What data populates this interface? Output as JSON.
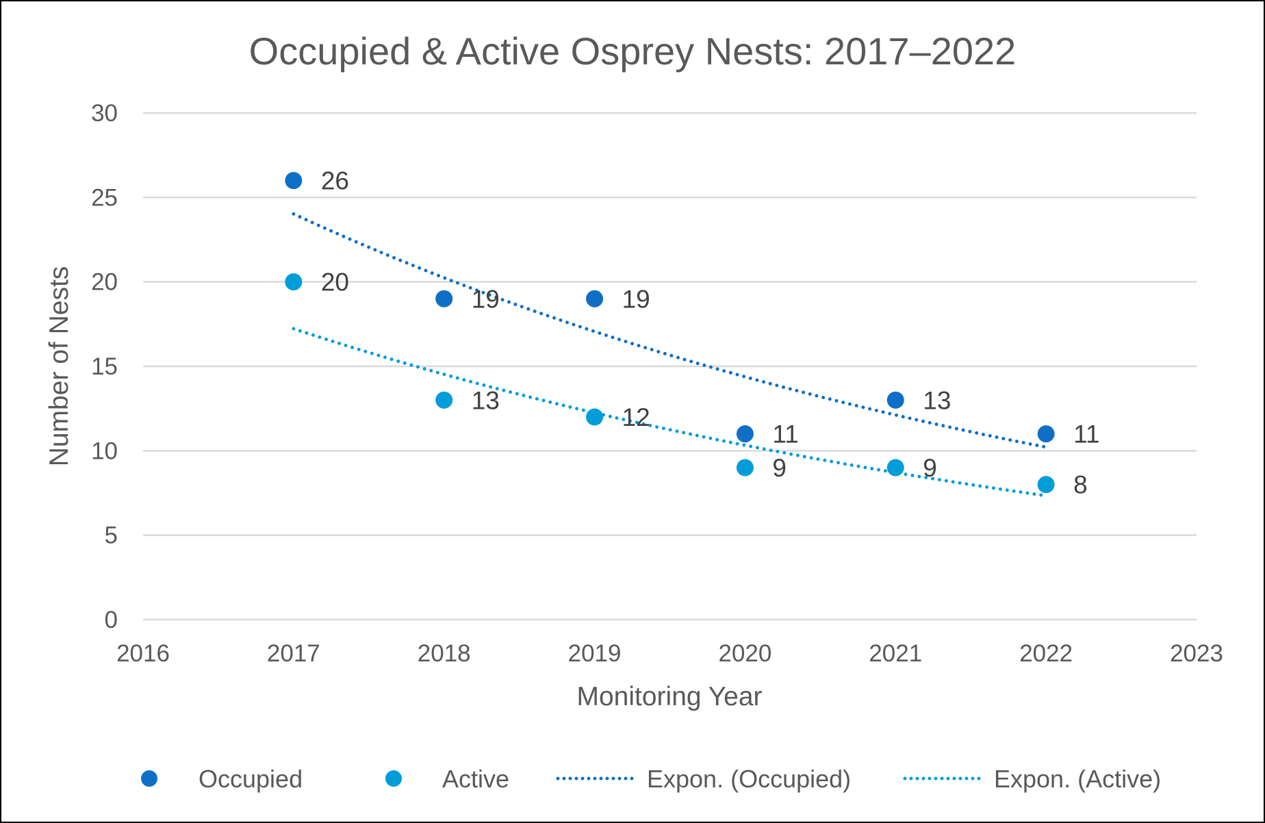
{
  "chart_data": {
    "type": "scatter",
    "title": "Occupied & Active Osprey Nests: 2017–2022",
    "xlabel": "Monitoring Year",
    "ylabel": "Number of Nests",
    "xlim": [
      2016,
      2023
    ],
    "ylim": [
      0,
      30
    ],
    "xticks": [
      "2016",
      "2017",
      "2018",
      "2019",
      "2020",
      "2021",
      "2022",
      "2023"
    ],
    "yticks": [
      "0",
      "5",
      "10",
      "15",
      "20",
      "25",
      "30"
    ],
    "grid": true,
    "legend_position": "bottom",
    "x": [
      2017,
      2018,
      2019,
      2020,
      2021,
      2022
    ],
    "series": [
      {
        "name": "Occupied",
        "values": [
          26,
          19,
          19,
          11,
          13,
          11
        ],
        "color": "#0F6FC6",
        "data_labels": true
      },
      {
        "name": "Active",
        "values": [
          20,
          13,
          12,
          9,
          9,
          8
        ],
        "color": "#009DD9",
        "data_labels": true
      }
    ],
    "trendlines": [
      {
        "name": "Expon. (Occupied)",
        "type": "exponential",
        "of": "Occupied",
        "style": "dotted",
        "color": "#0F6FC6"
      },
      {
        "name": "Expon. (Active)",
        "type": "exponential",
        "of": "Active",
        "style": "dotted",
        "color": "#009DD9"
      }
    ]
  }
}
